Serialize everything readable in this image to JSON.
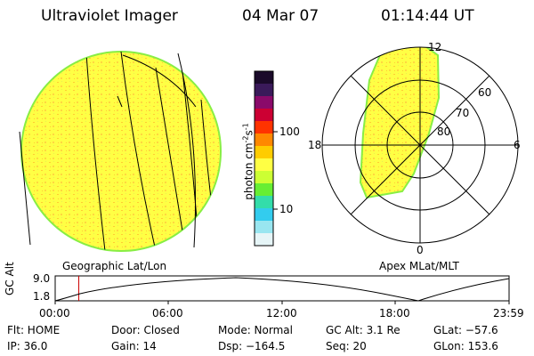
{
  "header": {
    "instrument": "Ultraviolet Imager",
    "date": "04 Mar 07",
    "time": "01:14:44 UT"
  },
  "colorbar": {
    "label": "photon cm",
    "label_sup1": "-2",
    "label_mid": "s",
    "label_sup2": "-1",
    "tick_high": "100",
    "tick_low": "10",
    "colors": [
      "#1a0a2a",
      "#3a1a5a",
      "#8a0a6a",
      "#cc0033",
      "#ff3300",
      "#ff8800",
      "#ffcc00",
      "#ffff44",
      "#ccff33",
      "#66ee33",
      "#33ddaa",
      "#33ccee",
      "#99e6f0",
      "#e6f5f7"
    ]
  },
  "left_panel": {
    "label": "Geographic Lat/Lon"
  },
  "right_panel": {
    "label": "Apex MLat/MLT",
    "mlt_labels": {
      "top": "12",
      "left": "18",
      "right": "6",
      "bottom": "0"
    },
    "lat_labels": [
      "60",
      "70",
      "80"
    ]
  },
  "timeline": {
    "ylabel": "GC Alt",
    "ymax": "9.0",
    "ymin": "1.8",
    "ticks": [
      "00:00",
      "06:00",
      "12:00",
      "18:00",
      "23:59"
    ],
    "marker_fraction": 0.052
  },
  "info": {
    "flt": "Flt: HOME",
    "ip": "IP: 36.0",
    "door": "Door: Closed",
    "gain": "Gain: 14",
    "mode": "Mode: Normal",
    "dsp": "Dsp: −164.5",
    "gcalt": "GC Alt: 3.1 Re",
    "seq": "Seq: 20",
    "glat": "GLat: −57.6",
    "glon": "GLon: 153.6"
  },
  "colors": {
    "fill": "#ffff44",
    "speckle": "#ffcc33",
    "edge": "#88ee44",
    "marker": "#cc0000"
  }
}
